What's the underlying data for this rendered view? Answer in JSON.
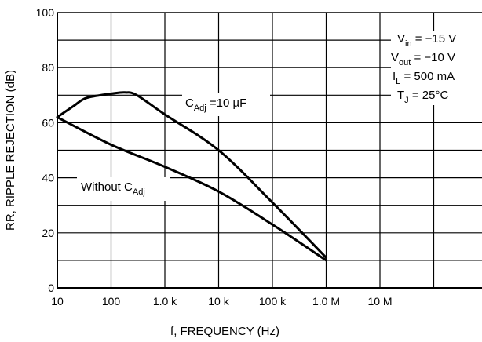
{
  "chart_data": {
    "type": "line",
    "title": "",
    "xlabel": "f, FREQUENCY (Hz)",
    "ylabel": "RR, RIPPLE REJECTION (dB)",
    "x_scale": "log",
    "xlim": [
      10,
      100000000
    ],
    "ylim": [
      0,
      100
    ],
    "grid": true,
    "x_tick_values": [
      10,
      100,
      1000,
      10000,
      100000,
      1000000,
      10000000
    ],
    "x_tick_labels": [
      "10",
      "100",
      "1.0 k",
      "10 k",
      "100 k",
      "1.0 M",
      "10 M"
    ],
    "y_ticks": [
      0,
      20,
      40,
      60,
      80,
      100
    ],
    "y_tick_labels": [
      "0",
      "20",
      "40",
      "60",
      "80",
      "100"
    ],
    "series": [
      {
        "name": "C_Adj = 10 µF",
        "label_main": "C",
        "label_sub": "Adj",
        "label_rest": " =10 µF",
        "x": [
          10,
          20,
          35,
          100,
          180,
          300,
          1000,
          10000,
          100000,
          1000000
        ],
        "y": [
          62,
          66,
          69,
          70.5,
          71,
          70,
          63,
          50,
          31,
          11
        ]
      },
      {
        "name": "Without C_Adj",
        "label_main": "Without C",
        "label_sub": "Adj",
        "label_rest": "",
        "x": [
          10,
          100,
          1000,
          10000,
          100000,
          1000000
        ],
        "y": [
          62,
          52,
          44,
          35,
          23,
          10
        ]
      }
    ],
    "conditions": [
      {
        "main": "V",
        "sub": "in",
        "rest": " = −15 V"
      },
      {
        "main": "V",
        "sub": "out",
        "rest": " = −10 V"
      },
      {
        "main": "I",
        "sub": "L",
        "rest": " = 500 mA"
      },
      {
        "main": "T",
        "sub": "J",
        "rest": " = 25°C"
      }
    ],
    "line_color": "#000000"
  }
}
